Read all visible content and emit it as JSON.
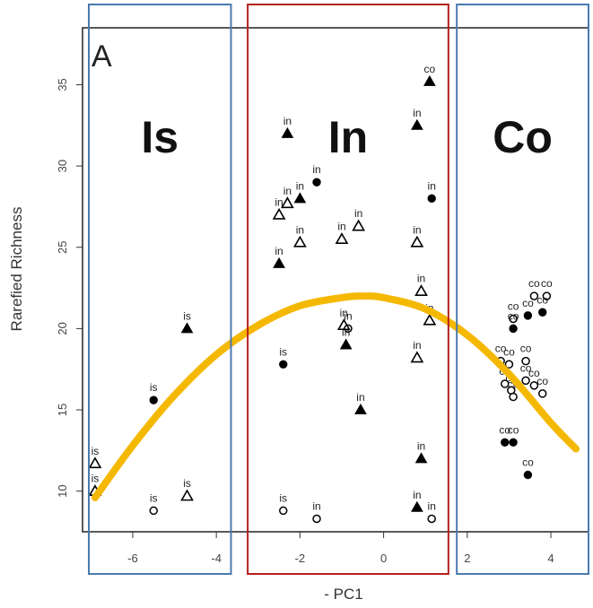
{
  "chart_data": {
    "type": "scatter",
    "panel_label": "A",
    "xlabel": "- PC1",
    "ylabel": "Rarefied Richness",
    "xlim": [
      -7.2,
      4.9
    ],
    "ylim": [
      7.5,
      38.5
    ],
    "x_ticks": [
      -6,
      -4,
      -2,
      0,
      2,
      4
    ],
    "y_ticks": [
      10,
      15,
      20,
      25,
      30,
      35
    ],
    "grid": false,
    "colors": {
      "fit_curve": "#F5B800",
      "region_is": "#4A7AB0",
      "region_in": "#B41E1E",
      "region_co": "#4A7AB0",
      "points": "#000000"
    },
    "regions": [
      {
        "name": "Is",
        "x_range": [
          -7.2,
          -3.65
        ],
        "color": "#4A7AB0"
      },
      {
        "name": "In",
        "x_range": [
          -3.25,
          1.55
        ],
        "color": "#B41E1E"
      },
      {
        "name": "Co",
        "x_range": [
          1.75,
          4.9
        ],
        "color": "#4A7AB0"
      }
    ],
    "marker_legend_note": "marker shapes: filled triangle, open triangle, filled circle, open circle",
    "points": [
      {
        "x": -6.9,
        "y": 11.7,
        "label": "is",
        "marker": "open-triangle"
      },
      {
        "x": -6.9,
        "y": 10.0,
        "label": "is",
        "marker": "open-triangle"
      },
      {
        "x": -5.5,
        "y": 15.6,
        "label": "is",
        "marker": "filled-circle"
      },
      {
        "x": -5.5,
        "y": 8.8,
        "label": "is",
        "marker": "open-circle"
      },
      {
        "x": -4.7,
        "y": 20.0,
        "label": "is",
        "marker": "filled-triangle"
      },
      {
        "x": -4.7,
        "y": 9.7,
        "label": "is",
        "marker": "open-triangle"
      },
      {
        "x": -2.3,
        "y": 32.0,
        "label": "in",
        "marker": "filled-triangle"
      },
      {
        "x": -1.6,
        "y": 29.0,
        "label": "in",
        "marker": "filled-circle"
      },
      {
        "x": -2.0,
        "y": 28.0,
        "label": "in",
        "marker": "filled-triangle"
      },
      {
        "x": -2.3,
        "y": 27.7,
        "label": "in",
        "marker": "open-triangle"
      },
      {
        "x": -2.5,
        "y": 27.0,
        "label": "in",
        "marker": "open-triangle"
      },
      {
        "x": -2.0,
        "y": 25.3,
        "label": "in",
        "marker": "open-triangle"
      },
      {
        "x": -1.0,
        "y": 25.5,
        "label": "in",
        "marker": "open-triangle"
      },
      {
        "x": -0.6,
        "y": 26.3,
        "label": "in",
        "marker": "open-triangle"
      },
      {
        "x": -2.5,
        "y": 24.0,
        "label": "in",
        "marker": "filled-triangle"
      },
      {
        "x": -2.4,
        "y": 17.8,
        "label": "is",
        "marker": "filled-circle"
      },
      {
        "x": -0.95,
        "y": 20.2,
        "label": "in",
        "marker": "open-triangle"
      },
      {
        "x": -0.85,
        "y": 20.0,
        "label": "in",
        "marker": "open-circle"
      },
      {
        "x": -0.9,
        "y": 19.0,
        "label": "in",
        "marker": "filled-triangle"
      },
      {
        "x": -0.55,
        "y": 15.0,
        "label": "in",
        "marker": "filled-triangle"
      },
      {
        "x": -2.4,
        "y": 8.8,
        "label": "is",
        "marker": "open-circle"
      },
      {
        "x": -1.6,
        "y": 8.3,
        "label": "in",
        "marker": "open-circle"
      },
      {
        "x": 0.8,
        "y": 32.5,
        "label": "in",
        "marker": "filled-triangle"
      },
      {
        "x": 1.15,
        "y": 28.0,
        "label": "in",
        "marker": "filled-circle"
      },
      {
        "x": 0.8,
        "y": 25.3,
        "label": "in",
        "marker": "open-triangle"
      },
      {
        "x": 0.9,
        "y": 22.3,
        "label": "in",
        "marker": "open-triangle"
      },
      {
        "x": 1.1,
        "y": 20.5,
        "label": "in",
        "marker": "open-triangle"
      },
      {
        "x": 0.8,
        "y": 18.2,
        "label": "in",
        "marker": "open-triangle"
      },
      {
        "x": 0.9,
        "y": 12.0,
        "label": "in",
        "marker": "filled-triangle"
      },
      {
        "x": 0.8,
        "y": 9.0,
        "label": "in",
        "marker": "filled-triangle"
      },
      {
        "x": 1.15,
        "y": 8.3,
        "label": "in",
        "marker": "open-circle"
      },
      {
        "x": 1.1,
        "y": 35.2,
        "label": "co",
        "marker": "filled-triangle"
      },
      {
        "x": 3.1,
        "y": 20.0,
        "label": "co",
        "marker": "filled-circle"
      },
      {
        "x": 3.45,
        "y": 20.8,
        "label": "co",
        "marker": "filled-circle"
      },
      {
        "x": 3.8,
        "y": 21.0,
        "label": "co",
        "marker": "filled-circle"
      },
      {
        "x": 3.6,
        "y": 22.0,
        "label": "co",
        "marker": "open-circle"
      },
      {
        "x": 3.9,
        "y": 22.0,
        "label": "co",
        "marker": "open-circle"
      },
      {
        "x": 3.1,
        "y": 20.6,
        "label": "co",
        "marker": "open-circle"
      },
      {
        "x": 2.8,
        "y": 18.0,
        "label": "co",
        "marker": "open-circle"
      },
      {
        "x": 3.0,
        "y": 17.8,
        "label": "co",
        "marker": "open-circle"
      },
      {
        "x": 3.4,
        "y": 18.0,
        "label": "co",
        "marker": "open-circle"
      },
      {
        "x": 2.9,
        "y": 16.6,
        "label": "co",
        "marker": "open-circle"
      },
      {
        "x": 3.4,
        "y": 16.8,
        "label": "co",
        "marker": "open-circle"
      },
      {
        "x": 3.6,
        "y": 16.5,
        "label": "co",
        "marker": "open-circle"
      },
      {
        "x": 3.05,
        "y": 16.2,
        "label": "co",
        "marker": "open-circle"
      },
      {
        "x": 3.1,
        "y": 15.8,
        "label": "co",
        "marker": "open-circle"
      },
      {
        "x": 3.8,
        "y": 16.0,
        "label": "co",
        "marker": "open-circle"
      },
      {
        "x": 2.9,
        "y": 13.0,
        "label": "co",
        "marker": "filled-circle"
      },
      {
        "x": 3.1,
        "y": 13.0,
        "label": "co",
        "marker": "filled-circle"
      },
      {
        "x": 3.45,
        "y": 11.0,
        "label": "co",
        "marker": "filled-circle"
      }
    ],
    "fit_curve": [
      {
        "x": -6.9,
        "y": 9.6
      },
      {
        "x": -6.0,
        "y": 12.8
      },
      {
        "x": -5.0,
        "y": 15.9
      },
      {
        "x": -4.0,
        "y": 18.4
      },
      {
        "x": -3.0,
        "y": 20.2
      },
      {
        "x": -2.0,
        "y": 21.4
      },
      {
        "x": -1.0,
        "y": 21.9
      },
      {
        "x": -0.5,
        "y": 22.0
      },
      {
        "x": 0.0,
        "y": 21.9
      },
      {
        "x": 1.0,
        "y": 21.2
      },
      {
        "x": 2.0,
        "y": 19.6
      },
      {
        "x": 3.0,
        "y": 17.2
      },
      {
        "x": 4.0,
        "y": 14.2
      },
      {
        "x": 4.6,
        "y": 12.6
      }
    ]
  }
}
